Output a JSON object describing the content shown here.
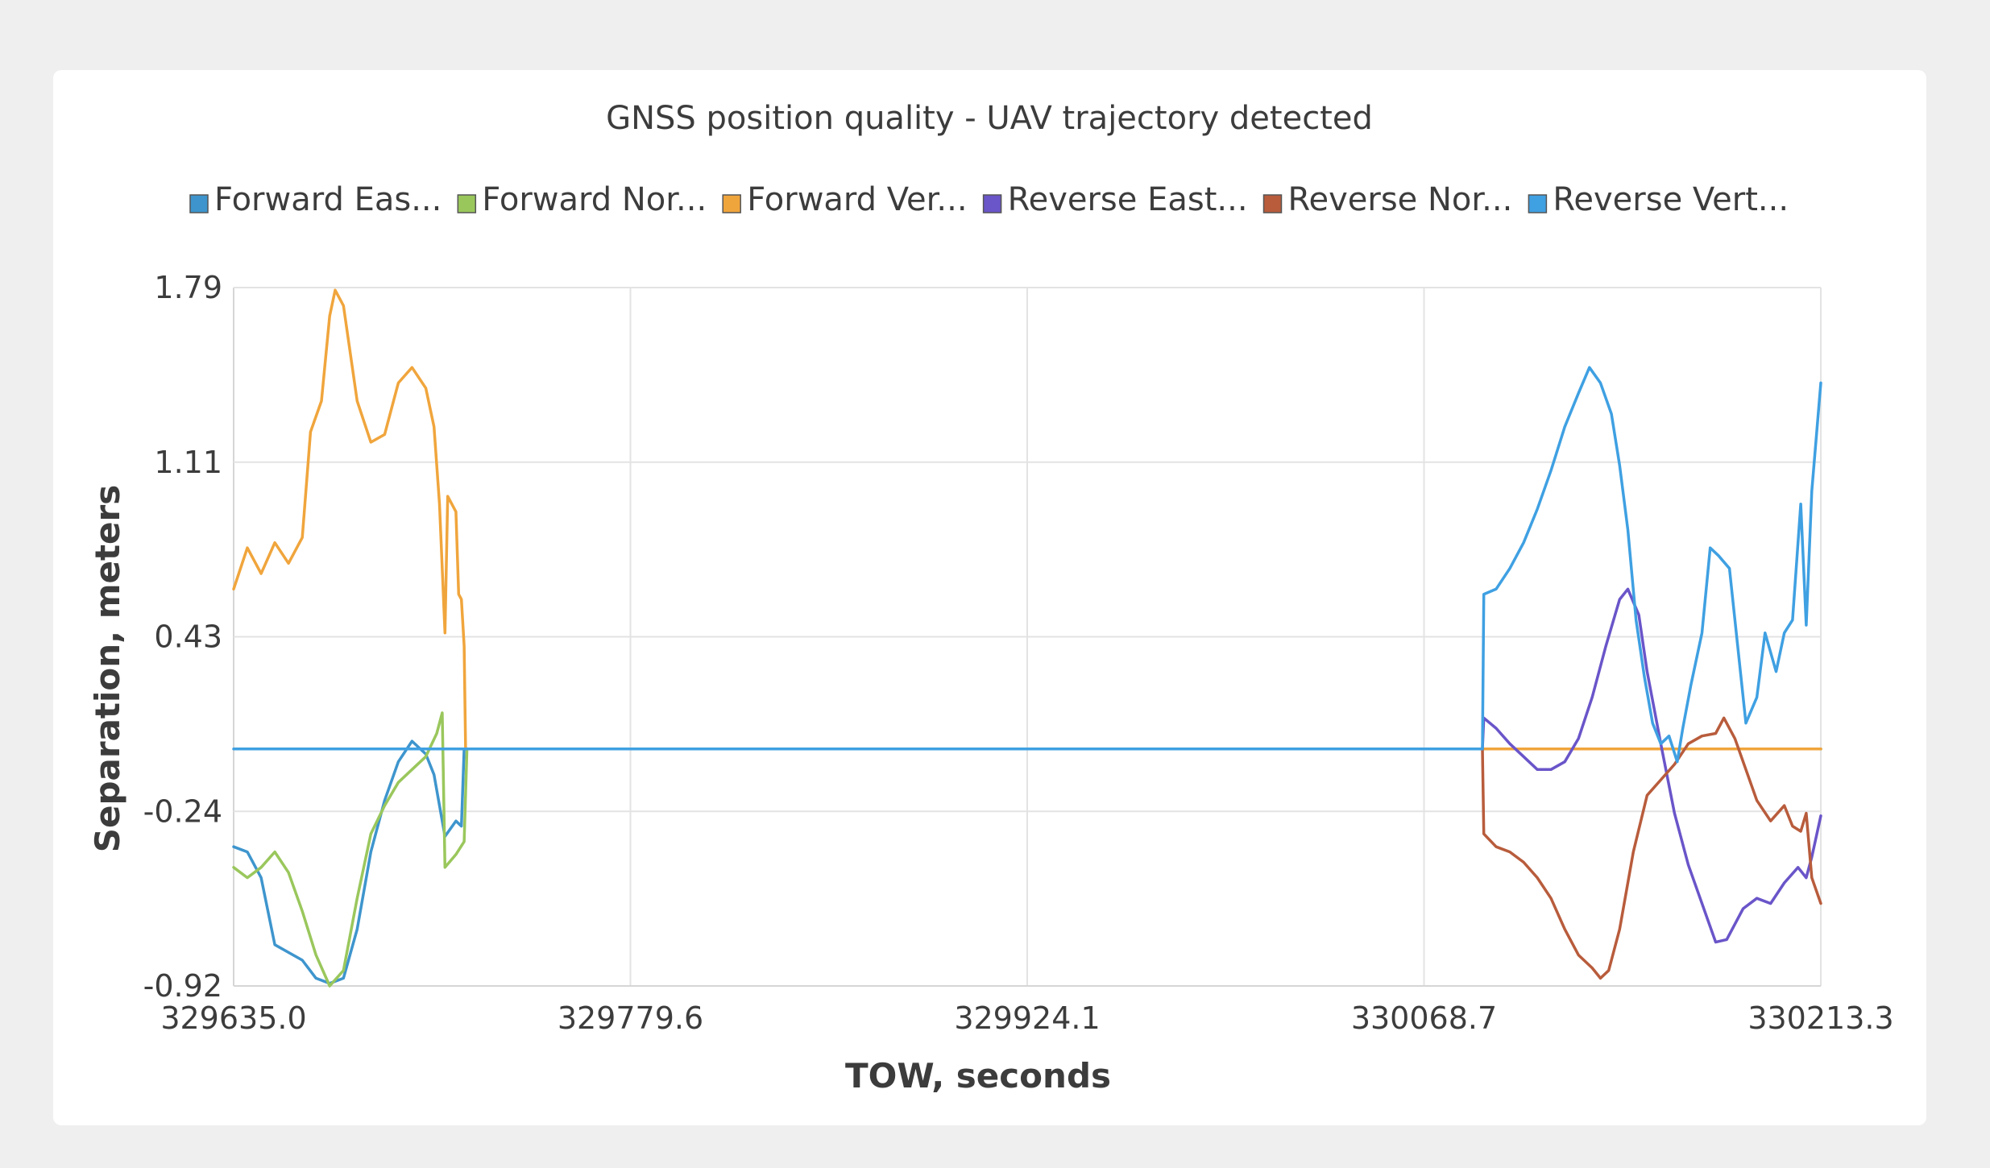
{
  "chart_data": {
    "type": "line",
    "title": "GNSS position quality - UAV trajectory detected",
    "xlabel": "TOW, seconds",
    "ylabel": "Separation, meters",
    "xlim": [
      329635.0,
      330213.3
    ],
    "ylim": [
      -0.92,
      1.79
    ],
    "x_ticks": [
      "329635.0",
      "329779.6",
      "329924.1",
      "330068.7",
      "330213.3"
    ],
    "y_ticks": [
      "1.79",
      "1.11",
      "0.43",
      "-0.24",
      "-0.92"
    ],
    "grid": true,
    "legend_position": "top",
    "series": [
      {
        "name": "Forward Eas...",
        "color": "#3e95cd",
        "points": [
          [
            329635.0,
            -0.38
          ],
          [
            329640.0,
            -0.4
          ],
          [
            329645.0,
            -0.5
          ],
          [
            329650.0,
            -0.76
          ],
          [
            329655.0,
            -0.79
          ],
          [
            329660.0,
            -0.82
          ],
          [
            329665.0,
            -0.89
          ],
          [
            329670.0,
            -0.91
          ],
          [
            329675.0,
            -0.89
          ],
          [
            329680.0,
            -0.7
          ],
          [
            329685.0,
            -0.4
          ],
          [
            329690.0,
            -0.2
          ],
          [
            329695.0,
            -0.05
          ],
          [
            329700.0,
            0.03
          ],
          [
            329705.0,
            -0.02
          ],
          [
            329708.0,
            -0.1
          ],
          [
            329712.0,
            -0.34
          ],
          [
            329716.0,
            -0.28
          ],
          [
            329718.0,
            -0.3
          ],
          [
            329719.0,
            0.0
          ],
          [
            330200.0,
            0.0
          ],
          [
            330213.3,
            0.0
          ]
        ]
      },
      {
        "name": "Forward Nor...",
        "color": "#9ac75c",
        "points": [
          [
            329635.0,
            -0.46
          ],
          [
            329640.0,
            -0.5
          ],
          [
            329645.0,
            -0.46
          ],
          [
            329650.0,
            -0.4
          ],
          [
            329655.0,
            -0.48
          ],
          [
            329660.0,
            -0.63
          ],
          [
            329665.0,
            -0.8
          ],
          [
            329670.0,
            -0.92
          ],
          [
            329675.0,
            -0.86
          ],
          [
            329680.0,
            -0.58
          ],
          [
            329685.0,
            -0.33
          ],
          [
            329690.0,
            -0.22
          ],
          [
            329695.0,
            -0.13
          ],
          [
            329700.0,
            -0.08
          ],
          [
            329705.0,
            -0.03
          ],
          [
            329709.0,
            0.06
          ],
          [
            329711.0,
            0.14
          ],
          [
            329712.0,
            -0.46
          ],
          [
            329716.0,
            -0.41
          ],
          [
            329719.0,
            -0.36
          ],
          [
            329720.0,
            0.0
          ],
          [
            330213.3,
            0.0
          ]
        ]
      },
      {
        "name": "Forward Ver...",
        "color": "#f0a53c",
        "points": [
          [
            329635.0,
            0.62
          ],
          [
            329640.0,
            0.78
          ],
          [
            329645.0,
            0.68
          ],
          [
            329650.0,
            0.8
          ],
          [
            329655.0,
            0.72
          ],
          [
            329660.0,
            0.82
          ],
          [
            329663.0,
            1.23
          ],
          [
            329667.0,
            1.35
          ],
          [
            329670.0,
            1.68
          ],
          [
            329672.0,
            1.78
          ],
          [
            329675.0,
            1.72
          ],
          [
            329680.0,
            1.35
          ],
          [
            329685.0,
            1.19
          ],
          [
            329690.0,
            1.22
          ],
          [
            329695.0,
            1.42
          ],
          [
            329700.0,
            1.48
          ],
          [
            329705.0,
            1.4
          ],
          [
            329708.0,
            1.25
          ],
          [
            329710.0,
            0.95
          ],
          [
            329712.0,
            0.45
          ],
          [
            329713.0,
            0.98
          ],
          [
            329716.0,
            0.92
          ],
          [
            329717.0,
            0.6
          ],
          [
            329718.0,
            0.58
          ],
          [
            329719.0,
            0.4
          ],
          [
            329719.5,
            0.0
          ],
          [
            330213.3,
            0.0
          ]
        ]
      },
      {
        "name": "Reverse East...",
        "color": "#6a55c9",
        "points": [
          [
            330090.0,
            0.0
          ],
          [
            330090.5,
            0.12
          ],
          [
            330095.0,
            0.08
          ],
          [
            330100.0,
            0.02
          ],
          [
            330105.0,
            -0.03
          ],
          [
            330110.0,
            -0.08
          ],
          [
            330115.0,
            -0.08
          ],
          [
            330120.0,
            -0.05
          ],
          [
            330125.0,
            0.04
          ],
          [
            330130.0,
            0.2
          ],
          [
            330135.0,
            0.4
          ],
          [
            330140.0,
            0.58
          ],
          [
            330143.0,
            0.62
          ],
          [
            330147.0,
            0.52
          ],
          [
            330150.0,
            0.3
          ],
          [
            330155.0,
            0.02
          ],
          [
            330160.0,
            -0.25
          ],
          [
            330165.0,
            -0.45
          ],
          [
            330170.0,
            -0.6
          ],
          [
            330175.0,
            -0.75
          ],
          [
            330179.0,
            -0.74
          ],
          [
            330185.0,
            -0.62
          ],
          [
            330190.0,
            -0.58
          ],
          [
            330195.0,
            -0.6
          ],
          [
            330200.0,
            -0.52
          ],
          [
            330205.0,
            -0.46
          ],
          [
            330208.0,
            -0.5
          ],
          [
            330210.0,
            -0.42
          ],
          [
            330213.3,
            -0.26
          ]
        ]
      },
      {
        "name": "Reverse Nor...",
        "color": "#b85c3c",
        "points": [
          [
            330090.0,
            0.0
          ],
          [
            330090.5,
            -0.33
          ],
          [
            330095.0,
            -0.38
          ],
          [
            330100.0,
            -0.4
          ],
          [
            330105.0,
            -0.44
          ],
          [
            330110.0,
            -0.5
          ],
          [
            330115.0,
            -0.58
          ],
          [
            330120.0,
            -0.7
          ],
          [
            330125.0,
            -0.8
          ],
          [
            330130.0,
            -0.85
          ],
          [
            330133.0,
            -0.89
          ],
          [
            330136.0,
            -0.86
          ],
          [
            330140.0,
            -0.7
          ],
          [
            330145.0,
            -0.4
          ],
          [
            330150.0,
            -0.18
          ],
          [
            330155.0,
            -0.12
          ],
          [
            330160.0,
            -0.06
          ],
          [
            330165.0,
            0.02
          ],
          [
            330170.0,
            0.05
          ],
          [
            330175.0,
            0.06
          ],
          [
            330178.0,
            0.12
          ],
          [
            330182.0,
            0.04
          ],
          [
            330186.0,
            -0.08
          ],
          [
            330190.0,
            -0.2
          ],
          [
            330195.0,
            -0.28
          ],
          [
            330200.0,
            -0.22
          ],
          [
            330203.0,
            -0.3
          ],
          [
            330206.0,
            -0.32
          ],
          [
            330208.0,
            -0.25
          ],
          [
            330210.0,
            -0.5
          ],
          [
            330213.3,
            -0.6
          ]
        ]
      },
      {
        "name": "Reverse Vert...",
        "color": "#3fa0e2",
        "points": [
          [
            329635.0,
            0.0
          ],
          [
            330090.0,
            0.0
          ],
          [
            330090.5,
            0.6
          ],
          [
            330095.0,
            0.62
          ],
          [
            330100.0,
            0.7
          ],
          [
            330105.0,
            0.8
          ],
          [
            330110.0,
            0.93
          ],
          [
            330115.0,
            1.08
          ],
          [
            330120.0,
            1.25
          ],
          [
            330125.0,
            1.38
          ],
          [
            330129.0,
            1.48
          ],
          [
            330133.0,
            1.42
          ],
          [
            330137.0,
            1.3
          ],
          [
            330140.0,
            1.1
          ],
          [
            330143.0,
            0.85
          ],
          [
            330146.0,
            0.5
          ],
          [
            330149.0,
            0.28
          ],
          [
            330152.0,
            0.1
          ],
          [
            330155.0,
            0.02
          ],
          [
            330158.0,
            0.05
          ],
          [
            330161.0,
            -0.05
          ],
          [
            330163.0,
            0.08
          ],
          [
            330166.0,
            0.25
          ],
          [
            330170.0,
            0.45
          ],
          [
            330173.0,
            0.78
          ],
          [
            330176.0,
            0.75
          ],
          [
            330180.0,
            0.7
          ],
          [
            330183.0,
            0.4
          ],
          [
            330186.0,
            0.1
          ],
          [
            330190.0,
            0.2
          ],
          [
            330193.0,
            0.45
          ],
          [
            330197.0,
            0.3
          ],
          [
            330200.0,
            0.45
          ],
          [
            330203.0,
            0.5
          ],
          [
            330206.0,
            0.95
          ],
          [
            330208.0,
            0.48
          ],
          [
            330210.0,
            1.0
          ],
          [
            330213.3,
            1.42
          ]
        ]
      }
    ]
  }
}
